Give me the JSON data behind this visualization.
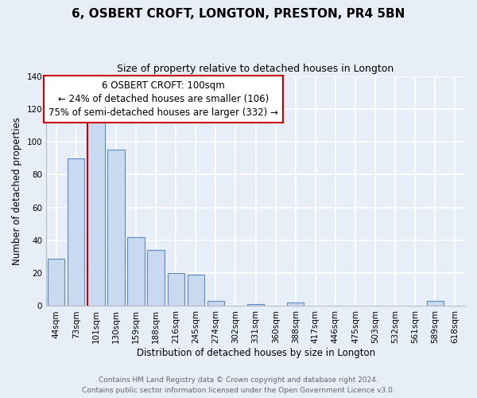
{
  "title": "6, OSBERT CROFT, LONGTON, PRESTON, PR4 5BN",
  "subtitle": "Size of property relative to detached houses in Longton",
  "xlabel": "Distribution of detached houses by size in Longton",
  "ylabel": "Number of detached properties",
  "bar_labels": [
    "44sqm",
    "73sqm",
    "101sqm",
    "130sqm",
    "159sqm",
    "188sqm",
    "216sqm",
    "245sqm",
    "274sqm",
    "302sqm",
    "331sqm",
    "360sqm",
    "388sqm",
    "417sqm",
    "446sqm",
    "475sqm",
    "503sqm",
    "532sqm",
    "561sqm",
    "589sqm",
    "618sqm"
  ],
  "bar_values": [
    29,
    90,
    112,
    95,
    42,
    34,
    20,
    19,
    3,
    0,
    1,
    0,
    2,
    0,
    0,
    0,
    0,
    0,
    0,
    3,
    0
  ],
  "bar_color": "#c9d9f0",
  "bar_edge_color": "#5b8ac4",
  "ylim": [
    0,
    140
  ],
  "yticks": [
    0,
    20,
    40,
    60,
    80,
    100,
    120,
    140
  ],
  "property_label": "6 OSBERT CROFT: 100sqm",
  "annotation_line1": "← 24% of detached houses are smaller (106)",
  "annotation_line2": "75% of semi-detached houses are larger (332) →",
  "vline_bar_index": 2,
  "vline_color": "#cc0000",
  "footer_line1": "Contains HM Land Registry data © Crown copyright and database right 2024.",
  "footer_line2": "Contains public sector information licensed under the Open Government Licence v3.0.",
  "background_color": "#e8eef8",
  "plot_bg_color": "#e8eef8",
  "annotation_box_edge_color": "#cc0000",
  "grid_color": "#ffffff",
  "title_fontsize": 11,
  "subtitle_fontsize": 9,
  "axis_label_fontsize": 8.5,
  "tick_fontsize": 7.5,
  "annotation_fontsize": 8.5,
  "footer_fontsize": 6.5
}
